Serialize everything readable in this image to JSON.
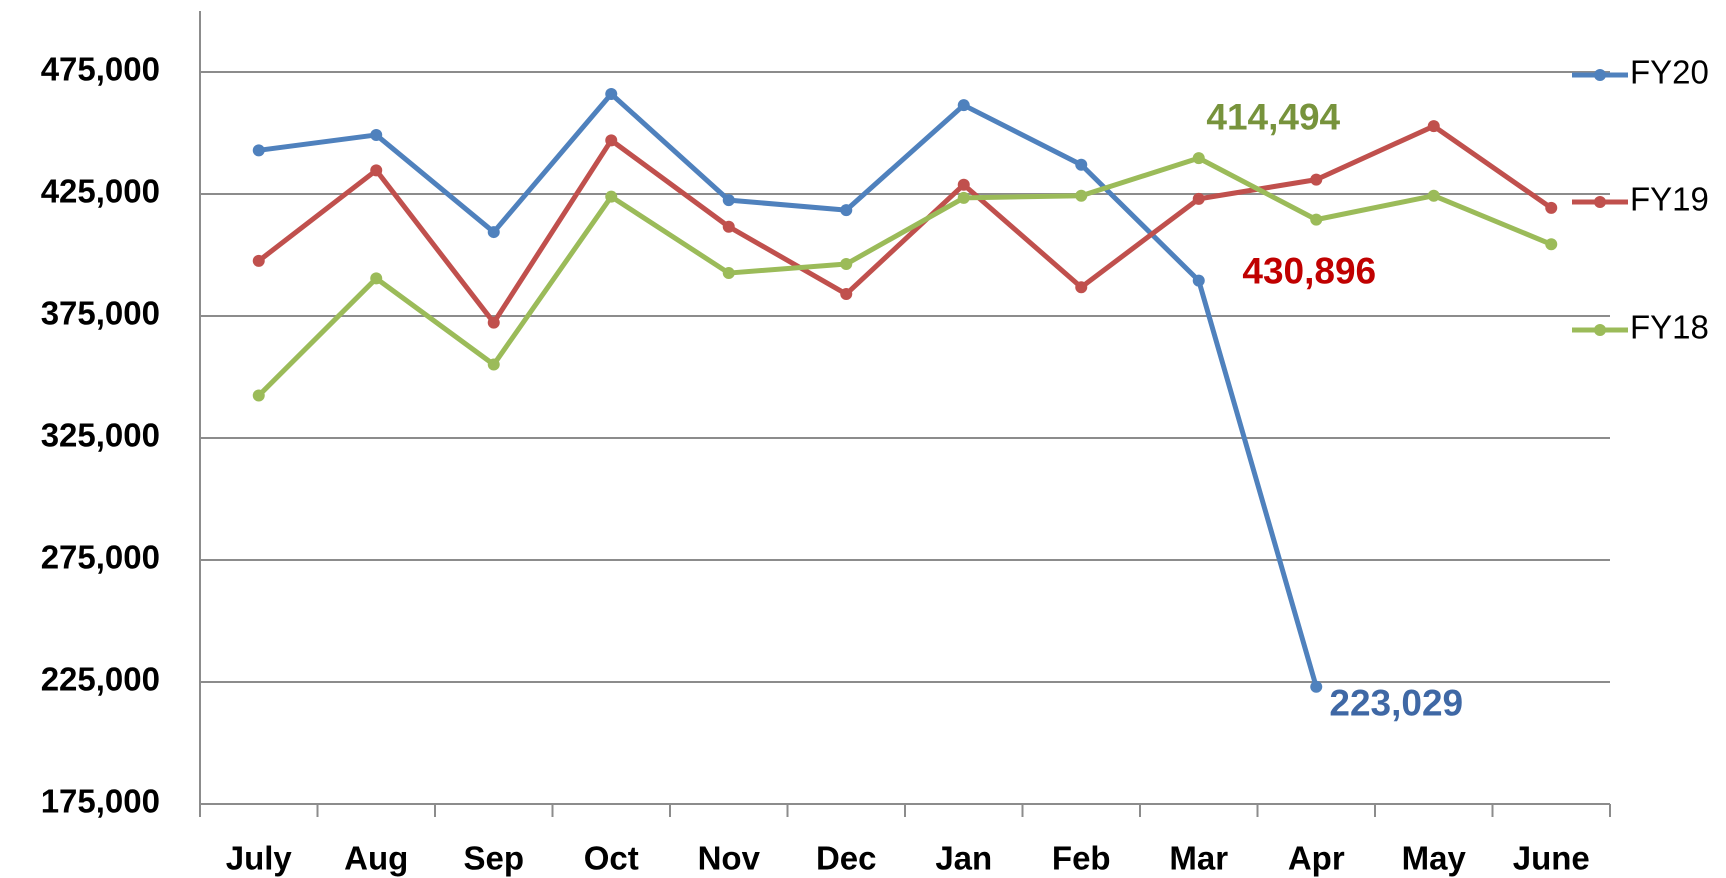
{
  "chart_data": {
    "type": "line",
    "categories": [
      "July",
      "Aug",
      "Sep",
      "Oct",
      "Nov",
      "Dec",
      "Jan",
      "Feb",
      "Mar",
      "Apr",
      "May",
      "June"
    ],
    "series": [
      {
        "name": "FY20",
        "color": "#4f81bd",
        "label_color": "#3f68a5",
        "values": [
          442900,
          449200,
          409400,
          466000,
          422500,
          418400,
          461400,
          437000,
          389500,
          223029,
          null,
          null
        ],
        "value_labels": [
          null,
          null,
          null,
          null,
          null,
          null,
          null,
          null,
          null,
          "223,029",
          null,
          null
        ]
      },
      {
        "name": "FY19",
        "color": "#c0504d",
        "label_color": "#c00000",
        "values": [
          397600,
          434700,
          372300,
          447000,
          411600,
          384000,
          428800,
          386800,
          423000,
          430896,
          452800,
          419300
        ],
        "value_labels": [
          null,
          null,
          null,
          null,
          null,
          null,
          null,
          null,
          null,
          "430,896",
          null,
          null
        ]
      },
      {
        "name": "FY18",
        "color": "#9bbb59",
        "label_color": "#77933c",
        "values": [
          342400,
          390400,
          355100,
          423900,
          392600,
          396300,
          423400,
          424300,
          439700,
          414494,
          424300,
          404400
        ],
        "value_labels": [
          null,
          null,
          null,
          null,
          null,
          null,
          null,
          null,
          null,
          "414,494",
          null,
          null
        ]
      }
    ],
    "ylim": [
      175000,
      500000
    ],
    "yticks": [
      {
        "value": 175000,
        "label": "175,000"
      },
      {
        "value": 225000,
        "label": "225,000"
      },
      {
        "value": 275000,
        "label": "275,000"
      },
      {
        "value": 325000,
        "label": "325,000"
      },
      {
        "value": 375000,
        "label": "375,000"
      },
      {
        "value": 425000,
        "label": "425,000"
      },
      {
        "value": 475000,
        "label": "475,000"
      }
    ],
    "grid": true,
    "legend": "right"
  }
}
